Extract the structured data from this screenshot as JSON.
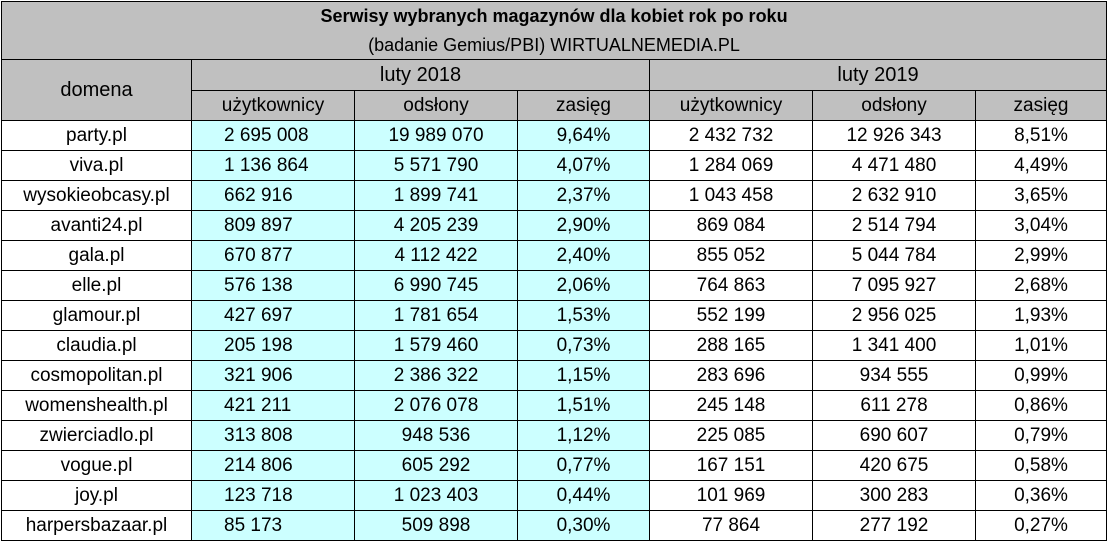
{
  "title": "Serwisy wybranych magazynów dla kobiet rok po roku",
  "subtitle": "(badanie Gemius/PBI) WIRTUALNEMEDIA.PL",
  "column_domain": "domena",
  "period_1": "luty 2018",
  "period_2": "luty 2019",
  "subheaders": [
    "użytkownicy",
    "odsłony",
    "zasięg",
    "użytkownicy",
    "odsłony",
    "zasięg"
  ],
  "rows": [
    {
      "domain": "party.pl",
      "u2018": "2 695 008",
      "o2018": "19 989 070",
      "z2018": "9,64%",
      "u2019": "2 432 732",
      "o2019": "12 926 343",
      "z2019": "8,51%"
    },
    {
      "domain": "viva.pl",
      "u2018": "1 136 864",
      "o2018": "5 571 790",
      "z2018": "4,07%",
      "u2019": "1 284 069",
      "o2019": "4 471 480",
      "z2019": "4,49%"
    },
    {
      "domain": "wysokieobcasy.pl",
      "u2018": "662 916",
      "o2018": "1 899 741",
      "z2018": "2,37%",
      "u2019": "1 043 458",
      "o2019": "2 632 910",
      "z2019": "3,65%"
    },
    {
      "domain": "avanti24.pl",
      "u2018": "809 897",
      "o2018": "4 205 239",
      "z2018": "2,90%",
      "u2019": "869 084",
      "o2019": "2 514 794",
      "z2019": "3,04%"
    },
    {
      "domain": "gala.pl",
      "u2018": "670 877",
      "o2018": "4 112 422",
      "z2018": "2,40%",
      "u2019": "855 052",
      "o2019": "5 044 784",
      "z2019": "2,99%"
    },
    {
      "domain": "elle.pl",
      "u2018": "576 138",
      "o2018": "6 990 745",
      "z2018": "2,06%",
      "u2019": "764 863",
      "o2019": "7 095 927",
      "z2019": "2,68%"
    },
    {
      "domain": "glamour.pl",
      "u2018": "427 697",
      "o2018": "1 781 654",
      "z2018": "1,53%",
      "u2019": "552 199",
      "o2019": "2 956 025",
      "z2019": "1,93%"
    },
    {
      "domain": "claudia.pl",
      "u2018": "205 198",
      "o2018": "1 579 460",
      "z2018": "0,73%",
      "u2019": "288 165",
      "o2019": "1 341 400",
      "z2019": "1,01%"
    },
    {
      "domain": "cosmopolitan.pl",
      "u2018": "321 906",
      "o2018": "2 386 322",
      "z2018": "1,15%",
      "u2019": "283 696",
      "o2019": "934 555",
      "z2019": "0,99%"
    },
    {
      "domain": "womenshealth.pl",
      "u2018": "421 211",
      "o2018": "2 076 078",
      "z2018": "1,51%",
      "u2019": "245 148",
      "o2019": "611 278",
      "z2019": "0,86%"
    },
    {
      "domain": "zwierciadlo.pl",
      "u2018": "313 808",
      "o2018": "948 536",
      "z2018": "1,12%",
      "u2019": "225 085",
      "o2019": "690 607",
      "z2019": "0,79%"
    },
    {
      "domain": "vogue.pl",
      "u2018": "214 806",
      "o2018": "605 292",
      "z2018": "0,77%",
      "u2019": "167 151",
      "o2019": "420 675",
      "z2019": "0,58%"
    },
    {
      "domain": "joy.pl",
      "u2018": "123 718",
      "o2018": "1 023 403",
      "z2018": "0,44%",
      "u2019": "101 969",
      "o2019": "300 283",
      "z2019": "0,36%"
    },
    {
      "domain": "harpersbazaar.pl",
      "u2018": "85 173",
      "o2018": "509 898",
      "z2018": "0,30%",
      "u2019": "77 864",
      "o2019": "277 192",
      "z2019": "0,27%"
    }
  ],
  "colors": {
    "header_bg": "#c0c0c0",
    "highlight_2018_bg": "#ccffff",
    "border": "#000000"
  }
}
